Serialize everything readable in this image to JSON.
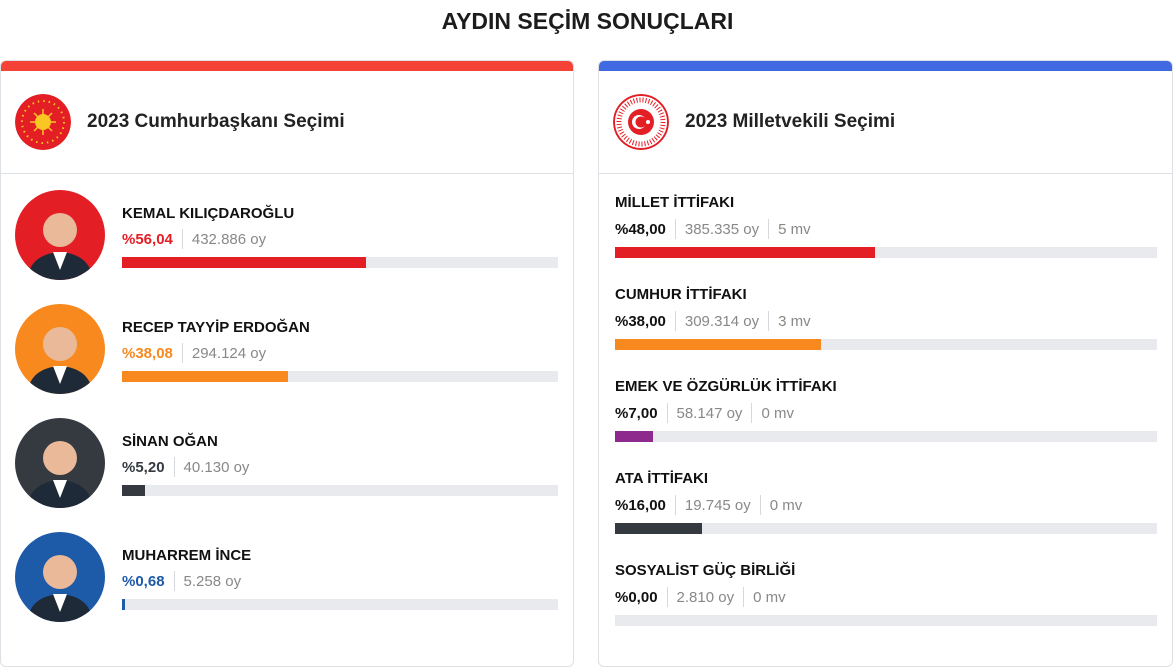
{
  "page_title": "AYDIN SEÇİM SONUÇLARI",
  "presidential": {
    "title": "2023 Cumhurbaşkanı Seçimi",
    "accent": "#f44336",
    "candidates": [
      {
        "name": "KEMAL KILIÇDAROĞLU",
        "pct_label": "%56,04",
        "pct": 56.04,
        "votes": "432.886 oy",
        "color": "#e31e24",
        "bg": "#e31e24"
      },
      {
        "name": "RECEP TAYYİP ERDOĞAN",
        "pct_label": "%38,08",
        "pct": 38.08,
        "votes": "294.124 oy",
        "color": "#f7891e",
        "bg": "#f7891e"
      },
      {
        "name": "SİNAN OĞAN",
        "pct_label": "%5,20",
        "pct": 5.2,
        "votes": "40.130 oy",
        "color": "#343a40",
        "bg": "#343a40"
      },
      {
        "name": "MUHARREM İNCE",
        "pct_label": "%0,68",
        "pct": 0.68,
        "votes": "5.258 oy",
        "color": "#1d5aa8",
        "bg": "#1d5aa8"
      }
    ]
  },
  "parliament": {
    "title": "2023 Milletvekili Seçimi",
    "accent": "#4169e1",
    "alliances": [
      {
        "name": "MİLLET İTTİFAKI",
        "pct_label": "%48,00",
        "pct": 48,
        "votes": "385.335 oy",
        "seats": "5 mv",
        "color": "#e31e24"
      },
      {
        "name": "CUMHUR İTTİFAKI",
        "pct_label": "%38,00",
        "pct": 38,
        "votes": "309.314 oy",
        "seats": "3 mv",
        "color": "#f7891e"
      },
      {
        "name": "EMEK VE ÖZGÜRLÜK İTTİFAKI",
        "pct_label": "%7,00",
        "pct": 7,
        "votes": "58.147 oy",
        "seats": "0 mv",
        "color": "#8e2a8e"
      },
      {
        "name": "ATA İTTİFAKI",
        "pct_label": "%16,00",
        "pct": 16,
        "votes": "19.745 oy",
        "seats": "0 mv",
        "color": "#343a40"
      },
      {
        "name": "SOSYALİST GÜÇ BİRLİĞİ",
        "pct_label": "%0,00",
        "pct": 0,
        "votes": "2.810 oy",
        "seats": "0 mv",
        "color": "#343a40"
      }
    ]
  }
}
